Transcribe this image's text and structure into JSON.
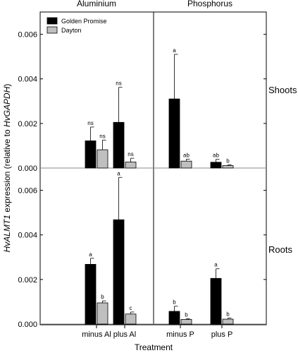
{
  "chart_data": {
    "type": "bar",
    "panel_titles": [
      "Aluminium",
      "Phosphorus"
    ],
    "row_labels": [
      "Shoots",
      "Roots"
    ],
    "categories": [
      "minus Al",
      "plus Al",
      "minus P",
      "plus P"
    ],
    "xlabel": "Treatment",
    "ylabel_prefix": "HvALMT1",
    "ylabel_middle": " expression (relative to ",
    "ylabel_suffix": "HvGAPDH",
    "ylabel_close": ")",
    "legend": [
      "Golden Promise",
      "Dayton"
    ],
    "colors": {
      "golden_promise": "#000000",
      "dayton": "#bfbfbf"
    },
    "ylim": [
      0,
      0.007
    ],
    "yticks": [
      "0.000",
      "0.002",
      "0.004",
      "0.006"
    ],
    "legend_position": "top-left",
    "panels": [
      {
        "row": "Shoots",
        "series": [
          {
            "name": "Golden Promise",
            "values": [
              0.00122,
              0.00205,
              0.0031,
              0.00026
            ],
            "errors": [
              0.00062,
              0.00157,
              0.002,
              0.00013
            ],
            "labels": [
              "ns",
              "ns",
              "a",
              "ab"
            ]
          },
          {
            "name": "Dayton",
            "values": [
              0.00082,
              0.00027,
              0.00031,
              0.00011
            ],
            "errors": [
              0.00043,
              0.00017,
              9e-05,
              4e-05
            ],
            "labels": [
              "ns",
              "ns",
              "ab",
              "b"
            ]
          }
        ]
      },
      {
        "row": "Roots",
        "series": [
          {
            "name": "Golden Promise",
            "values": [
              0.00268,
              0.00468,
              0.00057,
              0.00205
            ],
            "errors": [
              0.00027,
              0.0019,
              0.00023,
              0.00043
            ],
            "labels": [
              "a",
              "a",
              "b",
              "a"
            ]
          },
          {
            "name": "Dayton",
            "values": [
              0.00095,
              0.00045,
              0.00021,
              0.00022
            ],
            "errors": [
              9e-05,
              9e-05,
              3e-05,
              5e-05
            ],
            "labels": [
              "b",
              "c",
              "b",
              "b"
            ]
          }
        ]
      }
    ]
  }
}
